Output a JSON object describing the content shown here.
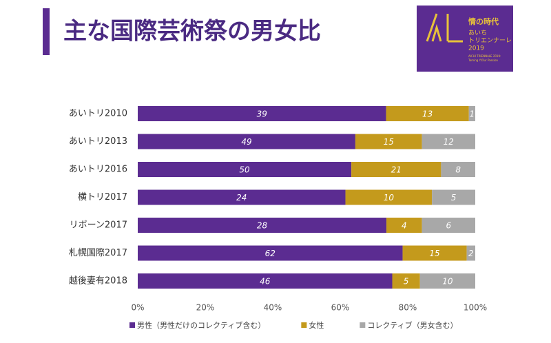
{
  "chart_data": {
    "type": "bar",
    "orientation": "horizontal",
    "stacking": "percent",
    "title": "主な国際芸術祭の男女比",
    "categories": [
      "あいトリ2010",
      "あいトリ2013",
      "あいトリ2016",
      "横トリ2017",
      "リボーン2017",
      "札幌国際2017",
      "越後妻有2018"
    ],
    "series": [
      {
        "name": "男性（男性だけのコレクティブ含む）",
        "color": "#5b2c91",
        "values": [
          39,
          49,
          50,
          24,
          28,
          62,
          46
        ]
      },
      {
        "name": "女性",
        "color": "#c49a1c",
        "values": [
          13,
          15,
          21,
          10,
          4,
          15,
          5
        ]
      },
      {
        "name": "コレクティブ（男女含む）",
        "color": "#a8a8a8",
        "values": [
          1,
          12,
          8,
          5,
          6,
          2,
          10
        ]
      }
    ],
    "xlim": [
      0,
      100
    ],
    "xticks": [
      {
        "value": 0,
        "label": "0%"
      },
      {
        "value": 20,
        "label": "20%"
      },
      {
        "value": 40,
        "label": "40%"
      },
      {
        "value": 60,
        "label": "60%"
      },
      {
        "value": 80,
        "label": "80%"
      },
      {
        "value": 100,
        "label": "100%"
      }
    ],
    "legend": "bottom"
  },
  "logo": {
    "title": "情の時代",
    "line1": "あいち",
    "line2": "トリエンナーレ",
    "line3": "2019",
    "caption1": "AICHI TRIENNALE 2019:",
    "caption2": "Taming Y/Our Passion"
  }
}
